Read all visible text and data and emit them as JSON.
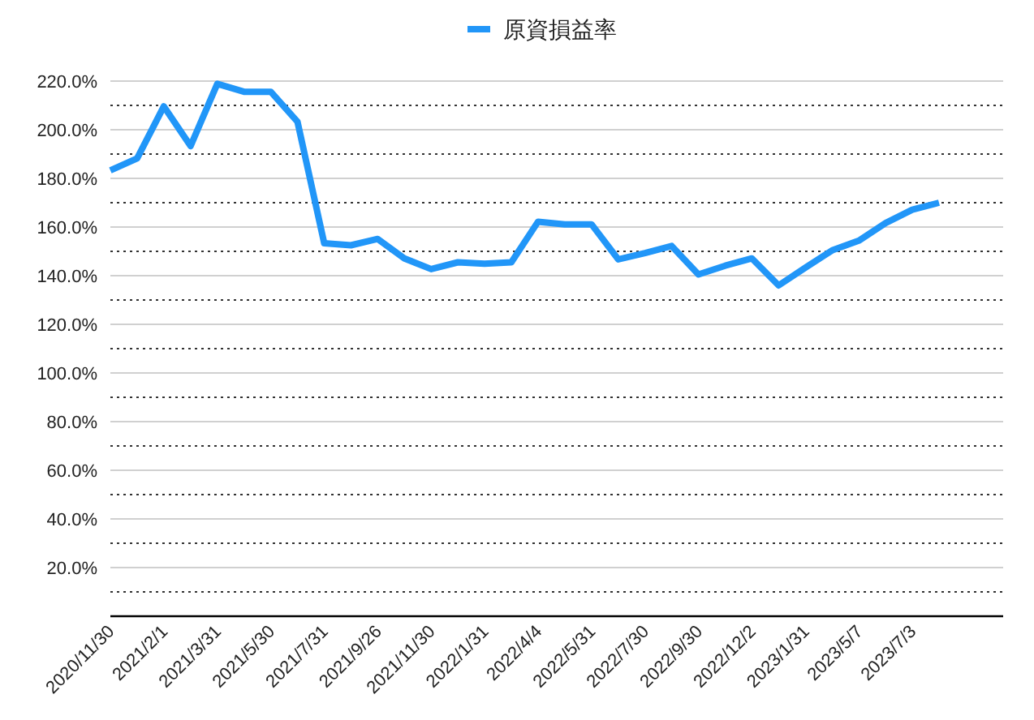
{
  "chart_data": {
    "type": "line",
    "categories": [
      "2020/11/30",
      null,
      "2021/2/1",
      null,
      "2021/3/31",
      null,
      "2021/5/30",
      null,
      "2021/7/31",
      null,
      "2021/9/26",
      null,
      "2021/11/30",
      null,
      "2022/1/31",
      null,
      "2022/4/4",
      null,
      "2022/5/31",
      null,
      "2022/7/30",
      null,
      "2022/9/30",
      null,
      "2022/12/2",
      null,
      "2023/1/31",
      null,
      "2023/5/7",
      null,
      "2023/7/3",
      null
    ],
    "series": [
      {
        "name": "原資損益率",
        "color": "#2196f8",
        "values": [
          183.3,
          188.2,
          209.6,
          193.3,
          218.9,
          215.6,
          215.6,
          203.3,
          153.3,
          152.5,
          155.1,
          147.1,
          142.7,
          145.5,
          144.9,
          145.5,
          162.2,
          161.1,
          161.1,
          146.7,
          149.3,
          152.2,
          140.5,
          144.1,
          147.1,
          136,
          143.3,
          150.4,
          154.4,
          161.6,
          167.1,
          170
        ]
      }
    ],
    "ylim": [
      0,
      220
    ],
    "yticks": [
      {
        "value": 10,
        "label": null
      },
      {
        "value": 20,
        "label": "20.0%"
      },
      {
        "value": 30,
        "label": null
      },
      {
        "value": 40,
        "label": "40.0%"
      },
      {
        "value": 50,
        "label": null
      },
      {
        "value": 60,
        "label": "60.0%"
      },
      {
        "value": 70,
        "label": null
      },
      {
        "value": 80,
        "label": "80.0%"
      },
      {
        "value": 90,
        "label": null
      },
      {
        "value": 100,
        "label": "100.0%"
      },
      {
        "value": 110,
        "label": null
      },
      {
        "value": 120,
        "label": "120.0%"
      },
      {
        "value": 130,
        "label": null
      },
      {
        "value": 140,
        "label": "140.0%"
      },
      {
        "value": 150,
        "label": null
      },
      {
        "value": 160,
        "label": "160.0%"
      },
      {
        "value": 170,
        "label": null
      },
      {
        "value": 180,
        "label": "180.0%"
      },
      {
        "value": 190,
        "label": null
      },
      {
        "value": 200,
        "label": "200.0%"
      },
      {
        "value": 210,
        "label": null
      },
      {
        "value": 220,
        "label": "220.0%"
      }
    ],
    "grid": "y",
    "legend": "top",
    "marker": "none",
    "line_style": "solid"
  }
}
